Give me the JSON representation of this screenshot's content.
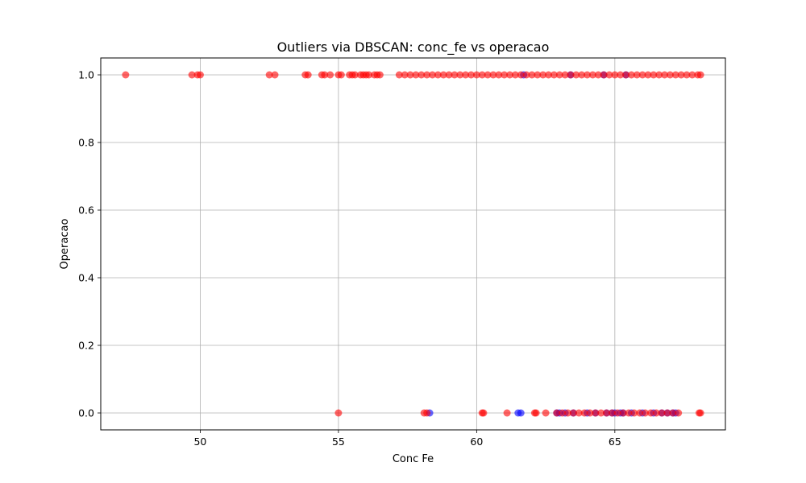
{
  "chart_data": {
    "type": "scatter",
    "title": "Outliers via DBSCAN: conc_fe vs operacao",
    "xlabel": "Conc Fe",
    "ylabel": "Operacao",
    "xlim": [
      46.4,
      69.0
    ],
    "ylim": [
      -0.05,
      1.05
    ],
    "xticks": [
      50,
      55,
      60,
      65
    ],
    "xtick_labels": [
      "50",
      "55",
      "60",
      "65"
    ],
    "yticks": [
      0.0,
      0.2,
      0.4,
      0.6,
      0.8,
      1.0
    ],
    "ytick_labels": [
      "0.0",
      "0.2",
      "0.4",
      "0.6",
      "0.8",
      "1.0"
    ],
    "grid": true,
    "colors": {
      "inlier": "#0000ff",
      "outlier": "#ff0000",
      "grid": "#b0b0b0"
    },
    "series": [
      {
        "color_role": "inlier",
        "x": [
          58.3,
          61.5,
          61.6,
          62.9,
          63.0,
          63.2,
          63.5,
          64.0,
          64.3,
          64.7,
          64.9,
          65.0,
          65.2,
          65.3,
          65.6,
          66.0,
          66.4,
          66.7,
          66.9,
          67.1,
          67.2,
          61.7,
          63.4,
          64.6,
          65.4
        ],
        "y": [
          0,
          0,
          0,
          0,
          0,
          0,
          0,
          0,
          0,
          0,
          0,
          0,
          0,
          0,
          0,
          0,
          0,
          0,
          0,
          0,
          0,
          1,
          1,
          1,
          1
        ]
      },
      {
        "color_role": "outlier",
        "x": [
          47.3,
          49.7,
          49.9,
          50.0,
          52.5,
          52.7,
          53.8,
          53.9,
          54.4,
          54.5,
          54.7,
          55.0,
          55.1,
          55.4,
          55.5,
          55.6,
          55.8,
          55.9,
          56.0,
          56.1,
          56.3,
          56.4,
          56.5,
          57.2,
          57.4,
          57.6,
          57.8,
          58.0,
          58.2,
          58.4,
          58.6,
          58.8,
          59.0,
          59.2,
          59.4,
          59.6,
          59.8,
          60.0,
          60.2,
          60.4,
          60.6,
          60.8,
          61.0,
          61.2,
          61.4,
          61.6,
          61.8,
          62.0,
          62.2,
          62.4,
          62.6,
          62.8,
          63.0,
          63.2,
          63.4,
          63.6,
          63.8,
          64.0,
          64.2,
          64.4,
          64.6,
          64.8,
          65.0,
          65.2,
          65.4,
          65.6,
          65.8,
          66.0,
          66.2,
          66.4,
          66.6,
          66.8,
          67.0,
          67.2,
          67.4,
          67.6,
          67.8,
          68.0,
          68.1,
          55.0,
          58.1,
          58.2,
          60.2,
          60.25,
          61.1,
          62.1,
          62.15,
          62.5,
          62.9,
          63.1,
          63.3,
          63.5,
          63.7,
          63.9,
          64.1,
          64.3,
          64.5,
          64.7,
          64.9,
          65.1,
          65.3,
          65.5,
          65.7,
          65.9,
          66.1,
          66.3,
          66.5,
          66.7,
          66.9,
          67.1,
          67.3,
          68.05,
          68.1
        ],
        "y": [
          1,
          1,
          1,
          1,
          1,
          1,
          1,
          1,
          1,
          1,
          1,
          1,
          1,
          1,
          1,
          1,
          1,
          1,
          1,
          1,
          1,
          1,
          1,
          1,
          1,
          1,
          1,
          1,
          1,
          1,
          1,
          1,
          1,
          1,
          1,
          1,
          1,
          1,
          1,
          1,
          1,
          1,
          1,
          1,
          1,
          1,
          1,
          1,
          1,
          1,
          1,
          1,
          1,
          1,
          1,
          1,
          1,
          1,
          1,
          1,
          1,
          1,
          1,
          1,
          1,
          1,
          1,
          1,
          1,
          1,
          1,
          1,
          1,
          1,
          1,
          1,
          1,
          1,
          1,
          0,
          0,
          0,
          0,
          0,
          0,
          0,
          0,
          0,
          0,
          0,
          0,
          0,
          0,
          0,
          0,
          0,
          0,
          0,
          0,
          0,
          0,
          0,
          0,
          0,
          0,
          0,
          0,
          0,
          0,
          0,
          0,
          0,
          0
        ]
      }
    ]
  }
}
